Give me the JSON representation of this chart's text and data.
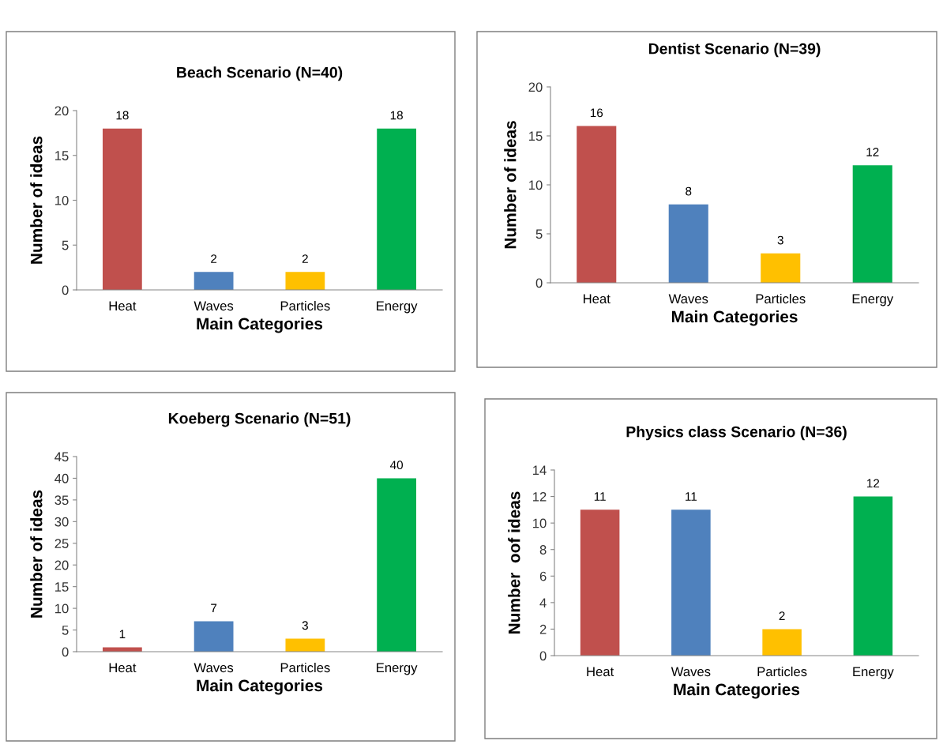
{
  "chart_data": [
    {
      "type": "bar",
      "title": "Beach Scenario (N=40)",
      "xlabel": "Main Categories",
      "ylabel": "Number of ideas",
      "categories": [
        "Heat",
        "Waves",
        "Particles",
        "Energy"
      ],
      "values": [
        18,
        2,
        2,
        18
      ],
      "colors": [
        "#c0504d",
        "#4f81bd",
        "#ffc000",
        "#00b050"
      ],
      "ylim": [
        0,
        20
      ],
      "yticks": [
        0,
        5,
        10,
        15,
        20
      ],
      "data_labels": true,
      "grid": false,
      "legend": false
    },
    {
      "type": "bar",
      "title": "Dentist Scenario (N=39)",
      "xlabel": "Main Categories",
      "ylabel": "Number of ideas",
      "categories": [
        "Heat",
        "Waves",
        "Particles",
        "Energy"
      ],
      "values": [
        16,
        8,
        3,
        12
      ],
      "colors": [
        "#c0504d",
        "#4f81bd",
        "#ffc000",
        "#00b050"
      ],
      "ylim": [
        0,
        20
      ],
      "yticks": [
        0,
        5,
        10,
        15,
        20
      ],
      "data_labels": true,
      "grid": false,
      "legend": false
    },
    {
      "type": "bar",
      "title": "Koeberg Scenario (N=51)",
      "xlabel": "Main Categories",
      "ylabel": "Number of ideas",
      "categories": [
        "Heat",
        "Waves",
        "Particles",
        "Energy"
      ],
      "values": [
        1,
        7,
        3,
        40
      ],
      "colors": [
        "#c0504d",
        "#4f81bd",
        "#ffc000",
        "#00b050"
      ],
      "ylim": [
        0,
        45
      ],
      "yticks": [
        0,
        5,
        10,
        15,
        20,
        25,
        30,
        35,
        40,
        45
      ],
      "data_labels": true,
      "grid": false,
      "legend": false
    },
    {
      "type": "bar",
      "title": "Physics class Scenario (N=36)",
      "xlabel": "Main Categories",
      "ylabel": "Number  oof ideas",
      "categories": [
        "Heat",
        "Waves",
        "Particles",
        "Energy"
      ],
      "values": [
        11,
        11,
        2,
        12
      ],
      "colors": [
        "#c0504d",
        "#4f81bd",
        "#ffc000",
        "#00b050"
      ],
      "ylim": [
        0,
        14
      ],
      "yticks": [
        0,
        2,
        4,
        6,
        8,
        10,
        12,
        14
      ],
      "data_labels": true,
      "grid": false,
      "legend": false
    }
  ]
}
